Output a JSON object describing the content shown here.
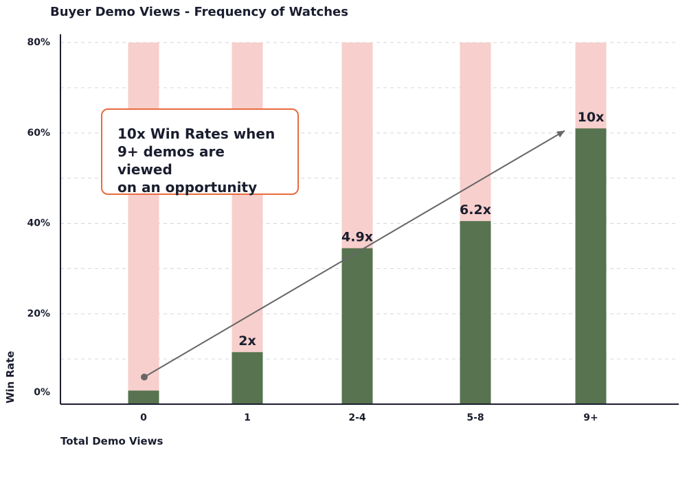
{
  "chart_data": {
    "type": "bar",
    "title": "Buyer Demo Views - Frequency of Watches",
    "xlabel": "Total Demo Views",
    "ylabel": "Win Rate",
    "categories": [
      "0",
      "1",
      "2-4",
      "5-8",
      "9+"
    ],
    "values": [
      3,
      11.5,
      34.5,
      40.5,
      61
    ],
    "background_values": [
      80,
      80,
      80,
      80,
      80
    ],
    "data_labels": [
      "",
      "2x",
      "4.9x",
      "6.2x",
      "10x"
    ],
    "ylim": [
      0,
      80
    ],
    "yticks": [
      0,
      20,
      40,
      60,
      80
    ],
    "ytick_labels": [
      "0%",
      "20%",
      "40%",
      "60%",
      "80%"
    ],
    "grid": true,
    "colors": {
      "bar": "#577350",
      "background_bar": "#f7cfcc",
      "arrow": "#666666",
      "callout_border": "#e86a3d"
    },
    "annotation": {
      "lines": [
        "10x Win Rates when",
        "9+ demos are viewed",
        "on an opportunity"
      ]
    },
    "trend_arrow": {
      "from": {
        "category": "0",
        "y": 6
      },
      "to": {
        "category": "9+",
        "y": 60.5
      }
    }
  }
}
